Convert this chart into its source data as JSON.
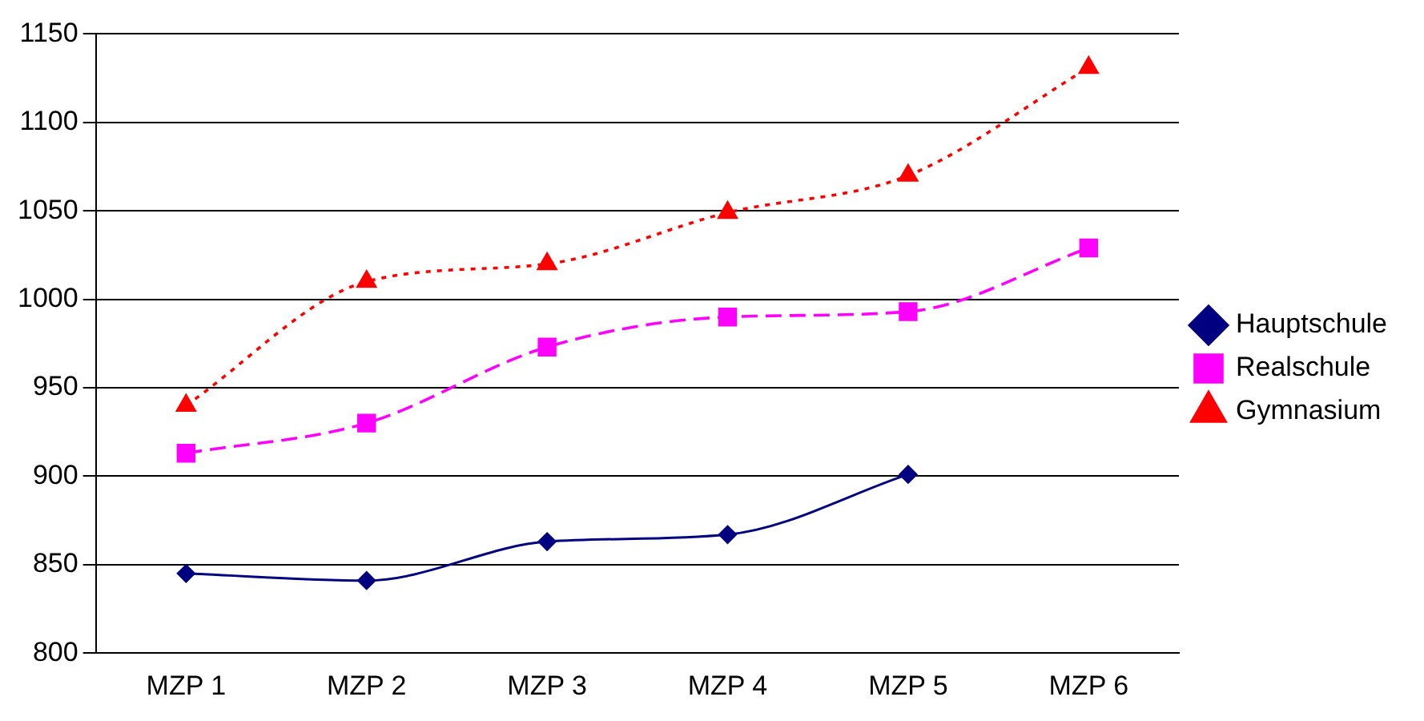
{
  "chart_data": {
    "type": "line",
    "categories": [
      "MZP 1",
      "MZP 2",
      "MZP 3",
      "MZP 4",
      "MZP 5",
      "MZP 6"
    ],
    "series": [
      {
        "name": "Hauptschule",
        "color": "#000080",
        "marker": "diamond",
        "line_style": "solid",
        "values": [
          845,
          841,
          863,
          867,
          901,
          null
        ]
      },
      {
        "name": "Realschule",
        "color": "#ff00ff",
        "marker": "square",
        "line_style": "dashed",
        "values": [
          913,
          930,
          973,
          990,
          993,
          1029
        ]
      },
      {
        "name": "Gymnasium",
        "color": "#ff0000",
        "marker": "triangle",
        "line_style": "dotted",
        "values": [
          940,
          1010,
          1020,
          1049,
          1070,
          1131
        ]
      }
    ],
    "ylim": [
      800,
      1150
    ],
    "yticks": [
      800,
      850,
      900,
      950,
      1000,
      1050,
      1100,
      1150
    ],
    "grid": "y",
    "legend": "right"
  }
}
